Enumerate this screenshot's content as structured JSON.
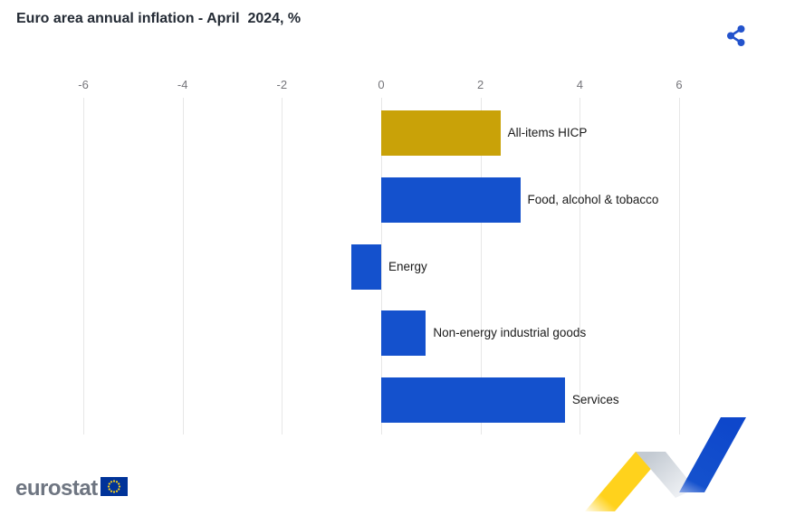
{
  "header": {
    "title": "Euro area annual inflation - April  2024, %"
  },
  "share": {
    "icon": "share-icon",
    "color": "#2353CC"
  },
  "chart_data": {
    "type": "bar",
    "orientation": "horizontal",
    "title": "Euro area annual inflation - April  2024, %",
    "categories": [
      "All-items HICP",
      "Food, alcohol & tobacco",
      "Energy",
      "Non-energy industrial goods",
      "Services"
    ],
    "values": [
      2.4,
      2.8,
      -0.6,
      0.9,
      3.7
    ],
    "bar_colors": [
      "#C9A208",
      "#1451CD",
      "#1451CD",
      "#1451CD",
      "#1451CD"
    ],
    "ticks": [
      -6,
      -4,
      -2,
      0,
      2,
      4,
      6
    ],
    "xlim": [
      -6,
      6
    ],
    "grid": true,
    "legend": false,
    "axis_label_color": "#75757A",
    "gridline_color": "#E7E7E7",
    "category_label_color": "#1A1A1A"
  },
  "footer": {
    "logo_text": "eurostat",
    "flag_blue": "#003399",
    "star_yellow": "#FFD617"
  },
  "colors": {
    "accent_blue": "#1451CD",
    "accent_gold": "#C9A208",
    "deco_yellow": "#FFD21C",
    "deco_gray": "#BFC6CE",
    "title_color": "#242B35",
    "logo_text_color": "#6E7581"
  }
}
